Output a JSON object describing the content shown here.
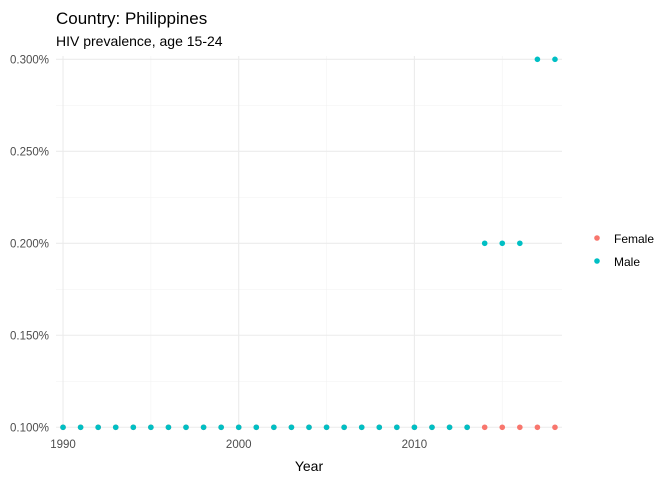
{
  "chart_data": {
    "type": "scatter",
    "title": "Country: Philippines",
    "subtitle": "HIV prevalence, age 15-24",
    "xlabel": "Year",
    "ylabel": "",
    "xlim": [
      1989.6,
      2018.4
    ],
    "ylim": [
      0.0996,
      0.3018
    ],
    "x_ticks": [
      1990,
      2000,
      2010
    ],
    "y_ticks": [
      0.1,
      0.15,
      0.2,
      0.25,
      0.3
    ],
    "y_tick_labels": [
      "0.100%",
      "0.150%",
      "0.200%",
      "0.250%",
      "0.300%"
    ],
    "grid": true,
    "legend_position": "right",
    "series": [
      {
        "name": "Female",
        "color": "#F8766D",
        "points": [
          {
            "x": 1990,
            "y": 0.1
          },
          {
            "x": 1991,
            "y": 0.1
          },
          {
            "x": 1992,
            "y": 0.1
          },
          {
            "x": 1993,
            "y": 0.1
          },
          {
            "x": 1994,
            "y": 0.1
          },
          {
            "x": 1995,
            "y": 0.1
          },
          {
            "x": 1996,
            "y": 0.1
          },
          {
            "x": 1997,
            "y": 0.1
          },
          {
            "x": 1998,
            "y": 0.1
          },
          {
            "x": 1999,
            "y": 0.1
          },
          {
            "x": 2000,
            "y": 0.1
          },
          {
            "x": 2001,
            "y": 0.1
          },
          {
            "x": 2002,
            "y": 0.1
          },
          {
            "x": 2003,
            "y": 0.1
          },
          {
            "x": 2004,
            "y": 0.1
          },
          {
            "x": 2005,
            "y": 0.1
          },
          {
            "x": 2006,
            "y": 0.1
          },
          {
            "x": 2007,
            "y": 0.1
          },
          {
            "x": 2008,
            "y": 0.1
          },
          {
            "x": 2009,
            "y": 0.1
          },
          {
            "x": 2010,
            "y": 0.1
          },
          {
            "x": 2011,
            "y": 0.1
          },
          {
            "x": 2012,
            "y": 0.1
          },
          {
            "x": 2013,
            "y": 0.1
          },
          {
            "x": 2014,
            "y": 0.1
          },
          {
            "x": 2015,
            "y": 0.1
          },
          {
            "x": 2016,
            "y": 0.1
          },
          {
            "x": 2017,
            "y": 0.1
          },
          {
            "x": 2018,
            "y": 0.1
          }
        ]
      },
      {
        "name": "Male",
        "color": "#00BFC4",
        "points": [
          {
            "x": 1990,
            "y": 0.1
          },
          {
            "x": 1991,
            "y": 0.1
          },
          {
            "x": 1992,
            "y": 0.1
          },
          {
            "x": 1993,
            "y": 0.1
          },
          {
            "x": 1994,
            "y": 0.1
          },
          {
            "x": 1995,
            "y": 0.1
          },
          {
            "x": 1996,
            "y": 0.1
          },
          {
            "x": 1997,
            "y": 0.1
          },
          {
            "x": 1998,
            "y": 0.1
          },
          {
            "x": 1999,
            "y": 0.1
          },
          {
            "x": 2000,
            "y": 0.1
          },
          {
            "x": 2001,
            "y": 0.1
          },
          {
            "x": 2002,
            "y": 0.1
          },
          {
            "x": 2003,
            "y": 0.1
          },
          {
            "x": 2004,
            "y": 0.1
          },
          {
            "x": 2005,
            "y": 0.1
          },
          {
            "x": 2006,
            "y": 0.1
          },
          {
            "x": 2007,
            "y": 0.1
          },
          {
            "x": 2008,
            "y": 0.1
          },
          {
            "x": 2009,
            "y": 0.1
          },
          {
            "x": 2010,
            "y": 0.1
          },
          {
            "x": 2011,
            "y": 0.1
          },
          {
            "x": 2012,
            "y": 0.1
          },
          {
            "x": 2013,
            "y": 0.1
          },
          {
            "x": 2014,
            "y": 0.2
          },
          {
            "x": 2015,
            "y": 0.2
          },
          {
            "x": 2016,
            "y": 0.2
          },
          {
            "x": 2017,
            "y": 0.3
          },
          {
            "x": 2018,
            "y": 0.3
          }
        ]
      }
    ]
  }
}
